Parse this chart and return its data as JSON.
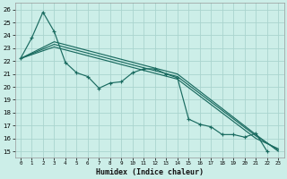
{
  "xlabel": "Humidex (Indice chaleur)",
  "bg_color": "#cceee8",
  "grid_color": "#aad4ce",
  "line_color": "#1a6b60",
  "xlim": [
    -0.5,
    23.5
  ],
  "ylim": [
    14.5,
    26.5
  ],
  "yticks": [
    15,
    16,
    17,
    18,
    19,
    20,
    21,
    22,
    23,
    24,
    25,
    26
  ],
  "xticks": [
    0,
    1,
    2,
    3,
    4,
    5,
    6,
    7,
    8,
    9,
    10,
    11,
    12,
    13,
    14,
    15,
    16,
    17,
    18,
    19,
    20,
    21,
    22,
    23
  ],
  "main_x": [
    0,
    1,
    2,
    3,
    4,
    5,
    6,
    7,
    8,
    9,
    10,
    11,
    12,
    13,
    14,
    15,
    16,
    17,
    18,
    19,
    20,
    21,
    22
  ],
  "main_y": [
    22.2,
    23.8,
    25.8,
    24.3,
    21.9,
    21.1,
    20.8,
    19.9,
    20.3,
    20.4,
    21.1,
    21.4,
    21.4,
    21.0,
    20.7,
    17.5,
    17.1,
    16.9,
    16.3,
    16.3,
    16.1,
    16.4,
    15.0
  ],
  "trend_lines": [
    {
      "x": [
        0,
        3,
        14,
        21,
        23
      ],
      "y": [
        22.2,
        23.5,
        21.0,
        16.3,
        15.0
      ]
    },
    {
      "x": [
        0,
        3,
        14,
        21,
        23
      ],
      "y": [
        22.2,
        23.3,
        20.8,
        16.2,
        15.1
      ]
    },
    {
      "x": [
        0,
        3,
        14,
        21,
        23
      ],
      "y": [
        22.2,
        23.1,
        20.6,
        16.0,
        15.2
      ]
    }
  ]
}
